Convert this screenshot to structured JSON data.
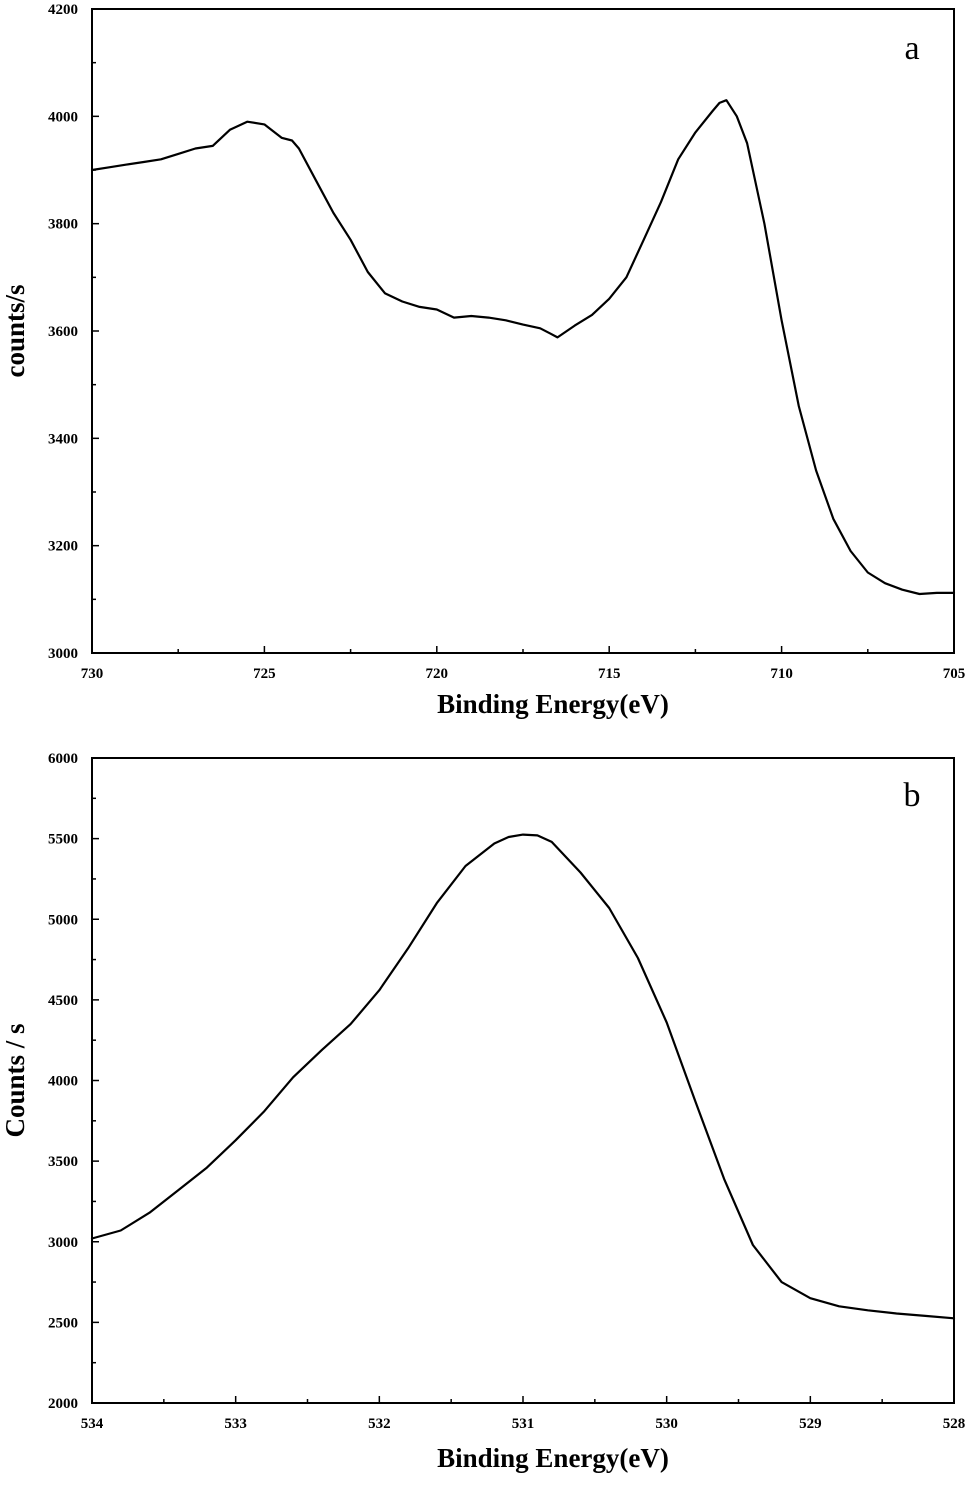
{
  "chart_data": [
    {
      "type": "line",
      "panel_label": "a",
      "xlabel": "Binding Energy(eV)",
      "ylabel": "counts/s",
      "xlim": [
        730,
        705
      ],
      "ylim": [
        3000,
        4200
      ],
      "x_ticks": [
        730,
        725,
        720,
        715,
        710,
        705
      ],
      "y_ticks": [
        3000,
        3200,
        3400,
        3600,
        3800,
        4000,
        4200
      ],
      "x_minor_step": 2.5,
      "y_minor_step": 100,
      "grid": false,
      "legend": "none",
      "series": [
        {
          "x": [
            730,
            729.5,
            729,
            728.5,
            728,
            727.5,
            727,
            726.5,
            726,
            725.5,
            725,
            724.5,
            724.2,
            724,
            723.5,
            723,
            722.5,
            722,
            721.5,
            721,
            720.5,
            720,
            719.5,
            719,
            718.5,
            718,
            717.5,
            717,
            716.7,
            716.5,
            716,
            715.5,
            715,
            714.5,
            714,
            713.5,
            713,
            712.5,
            712,
            711.8,
            711.6,
            711.3,
            711,
            710.5,
            710,
            709.5,
            709,
            708.5,
            708,
            707.5,
            707,
            706.5,
            706,
            705.5,
            705
          ],
          "y": [
            3900,
            3905,
            3910,
            3915,
            3920,
            3930,
            3940,
            3945,
            3975,
            3990,
            3985,
            3960,
            3955,
            3940,
            3880,
            3820,
            3770,
            3710,
            3670,
            3655,
            3645,
            3640,
            3625,
            3628,
            3625,
            3620,
            3612,
            3605,
            3595,
            3588,
            3610,
            3630,
            3660,
            3700,
            3770,
            3840,
            3920,
            3970,
            4010,
            4025,
            4030,
            4000,
            3950,
            3800,
            3620,
            3460,
            3340,
            3250,
            3190,
            3150,
            3130,
            3118,
            3110,
            3112,
            3112
          ]
        }
      ]
    },
    {
      "type": "line",
      "panel_label": "b",
      "xlabel": "Binding Energy(eV)",
      "ylabel": "Counts / s",
      "xlim": [
        534,
        528
      ],
      "ylim": [
        2000,
        6000
      ],
      "x_ticks": [
        534,
        533,
        532,
        531,
        530,
        529,
        528
      ],
      "y_ticks": [
        2000,
        2500,
        3000,
        3500,
        4000,
        4500,
        5000,
        5500,
        6000
      ],
      "x_minor_step": 0.5,
      "y_minor_step": 250,
      "grid": false,
      "legend": "none",
      "series": [
        {
          "x": [
            534,
            533.8,
            533.6,
            533.4,
            533.2,
            533,
            532.8,
            532.6,
            532.4,
            532.2,
            532,
            531.8,
            531.6,
            531.4,
            531.2,
            531.1,
            531,
            530.9,
            530.8,
            530.6,
            530.4,
            530.2,
            530,
            529.8,
            529.6,
            529.4,
            529.2,
            529,
            528.8,
            528.6,
            528.4,
            528.2,
            528
          ],
          "y": [
            3020,
            3070,
            3180,
            3320,
            3460,
            3630,
            3810,
            4020,
            4190,
            4350,
            4560,
            4820,
            5100,
            5330,
            5470,
            5510,
            5525,
            5520,
            5480,
            5290,
            5070,
            4760,
            4360,
            3870,
            3390,
            2980,
            2750,
            2650,
            2600,
            2575,
            2555,
            2540,
            2525
          ]
        }
      ]
    }
  ]
}
